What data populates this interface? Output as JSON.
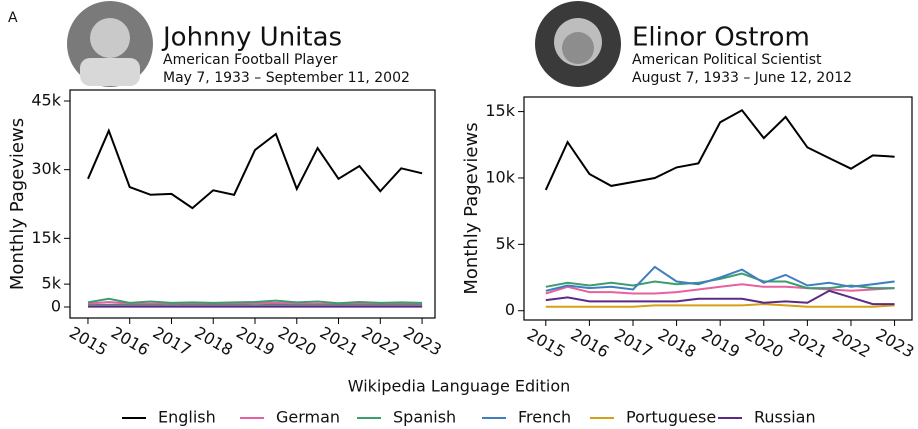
{
  "panel_label": "A",
  "legend_title": "Wikipedia Language Edition",
  "chart_data": [
    {
      "type": "line",
      "title": "Johnny Unitas",
      "subtitle": "American Football Player",
      "note": "May 7, 1933 – September 11, 2002",
      "y_label": "Monthly Pageviews",
      "x": [
        2015,
        2015.5,
        2016,
        2016.5,
        2017,
        2017.5,
        2018,
        2018.5,
        2019,
        2019.5,
        2020,
        2020.5,
        2021,
        2021.5,
        2022,
        2022.5,
        2023
      ],
      "xlim": [
        2014.57,
        2023.31
      ],
      "xticks": [
        2015,
        2016,
        2017,
        2018,
        2019,
        2020,
        2021,
        2022,
        2023
      ],
      "ylim": [
        -2400,
        47400
      ],
      "yticks": [
        0,
        {
          "value": 5000,
          "label": "5k"
        },
        {
          "value": 15000,
          "label": "15k"
        },
        {
          "value": 30000,
          "label": "30k"
        },
        {
          "value": 45000,
          "label": "45k"
        }
      ],
      "series": [
        {
          "name": "English",
          "color": "#000000",
          "values": [
            28000,
            38500,
            26200,
            24500,
            24700,
            21600,
            25500,
            24500,
            34300,
            37800,
            25800,
            34700,
            28000,
            30800,
            25300,
            30300,
            29200
          ]
        },
        {
          "name": "German",
          "color": "#e5619f",
          "values": [
            700,
            1100,
            700,
            700,
            800,
            700,
            700,
            700,
            800,
            900,
            700,
            700,
            600,
            700,
            600,
            700,
            600
          ]
        },
        {
          "name": "Spanish",
          "color": "#3a9e6e",
          "values": [
            1000,
            1800,
            900,
            1200,
            900,
            1000,
            900,
            1000,
            1100,
            1400,
            1000,
            1200,
            800,
            1100,
            900,
            1000,
            900
          ]
        },
        {
          "name": "French",
          "color": "#3f7fbf",
          "values": [
            400,
            500,
            400,
            400,
            400,
            400,
            400,
            400,
            400,
            500,
            400,
            400,
            400,
            400,
            400,
            400,
            400
          ]
        },
        {
          "name": "Portuguese",
          "color": "#d4a017",
          "values": [
            200,
            200,
            200,
            200,
            200,
            200,
            200,
            200,
            200,
            200,
            200,
            200,
            200,
            200,
            200,
            200,
            200
          ]
        },
        {
          "name": "Russian",
          "color": "#5b2a86",
          "values": [
            100,
            100,
            100,
            100,
            100,
            100,
            100,
            100,
            100,
            100,
            100,
            100,
            100,
            100,
            100,
            100,
            100
          ]
        }
      ]
    },
    {
      "type": "line",
      "title": "Elinor Ostrom",
      "subtitle": "American Political Scientist",
      "note": "August 7, 1933 – June 12, 2012",
      "y_label": "Monthly Pageviews",
      "x": [
        2015,
        2015.5,
        2016,
        2016.5,
        2017,
        2017.5,
        2018,
        2018.5,
        2019,
        2019.5,
        2020,
        2020.5,
        2021,
        2021.5,
        2022,
        2022.5,
        2023
      ],
      "xlim": [
        2014.5,
        2023.4
      ],
      "xticks": [
        2015,
        2016,
        2017,
        2018,
        2019,
        2020,
        2021,
        2022,
        2023
      ],
      "ylim": [
        -700,
        16100
      ],
      "yticks": [
        0,
        {
          "value": 5000,
          "label": "5k"
        },
        {
          "value": 10000,
          "label": "10k"
        },
        {
          "value": 15000,
          "label": "15k"
        }
      ],
      "series": [
        {
          "name": "English",
          "color": "#000000",
          "values": [
            9100,
            12700,
            10300,
            9400,
            9700,
            10000,
            10800,
            11100,
            14200,
            15100,
            13000,
            14600,
            12300,
            11500,
            10700,
            11700,
            11600
          ]
        },
        {
          "name": "German",
          "color": "#e5619f",
          "values": [
            1300,
            1800,
            1400,
            1400,
            1300,
            1300,
            1400,
            1600,
            1800,
            2000,
            1800,
            1800,
            1700,
            1600,
            1500,
            1600,
            1700
          ]
        },
        {
          "name": "Spanish",
          "color": "#3a9e6e",
          "values": [
            1800,
            2100,
            1900,
            2100,
            1900,
            2200,
            2000,
            2100,
            2400,
            2800,
            2200,
            2200,
            1700,
            1700,
            1900,
            1700,
            1700
          ]
        },
        {
          "name": "French",
          "color": "#3f7fbf",
          "values": [
            1500,
            1900,
            1700,
            1800,
            1600,
            3300,
            2200,
            2000,
            2500,
            3100,
            2100,
            2700,
            1900,
            2100,
            1800,
            2000,
            2200
          ]
        },
        {
          "name": "Portuguese",
          "color": "#d4a017",
          "values": [
            300,
            300,
            300,
            300,
            300,
            400,
            400,
            400,
            400,
            400,
            500,
            400,
            300,
            300,
            300,
            300,
            400
          ]
        },
        {
          "name": "Russian",
          "color": "#5b2a86",
          "values": [
            800,
            1000,
            700,
            700,
            700,
            700,
            700,
            900,
            900,
            900,
            600,
            700,
            600,
            1500,
            1000,
            500,
            500
          ]
        }
      ]
    }
  ]
}
